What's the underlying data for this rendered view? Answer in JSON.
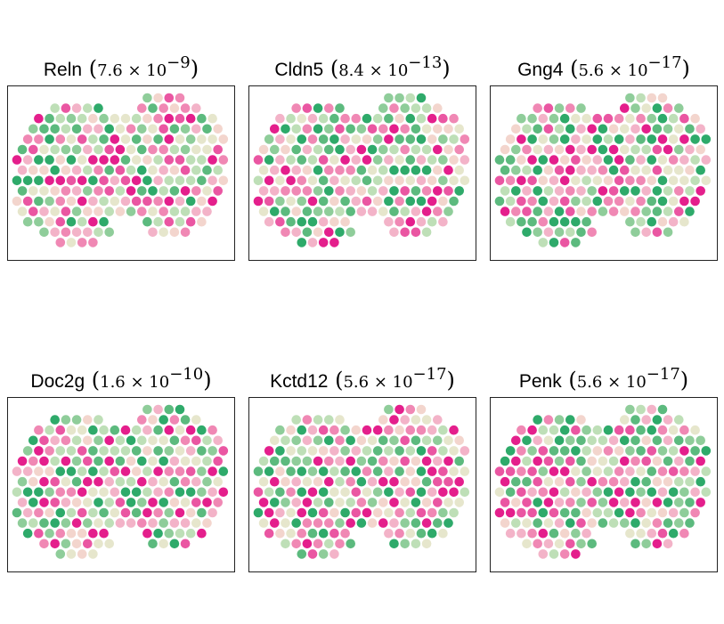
{
  "figure": {
    "palette": [
      "#2eaa6a",
      "#5cba7e",
      "#8fcd9a",
      "#bedfb7",
      "#e6e6cc",
      "#f3d5cd",
      "#f3b3c8",
      "#f088b4",
      "#ea56a2",
      "#e41f8c"
    ]
  },
  "chart_data": [
    {
      "type": "scatter",
      "title_gene": "Reln",
      "pvalue_mantissa": "7.6",
      "pvalue_exponent": "−9",
      "seed": 3
    },
    {
      "type": "scatter",
      "title_gene": "Cldn5",
      "pvalue_mantissa": "8.4",
      "pvalue_exponent": "−13",
      "seed": 11
    },
    {
      "type": "scatter",
      "title_gene": "Gng4",
      "pvalue_mantissa": "5.6",
      "pvalue_exponent": "−17",
      "seed": 23
    },
    {
      "type": "scatter",
      "title_gene": "Doc2g",
      "pvalue_mantissa": "1.6",
      "pvalue_exponent": "−10",
      "seed": 37
    },
    {
      "type": "scatter",
      "title_gene": "Kctd12",
      "pvalue_mantissa": "5.6",
      "pvalue_exponent": "−17",
      "seed": 51
    },
    {
      "type": "scatter",
      "title_gene": "Penk",
      "pvalue_mantissa": "5.6",
      "pvalue_exponent": "−17",
      "seed": 67
    }
  ]
}
